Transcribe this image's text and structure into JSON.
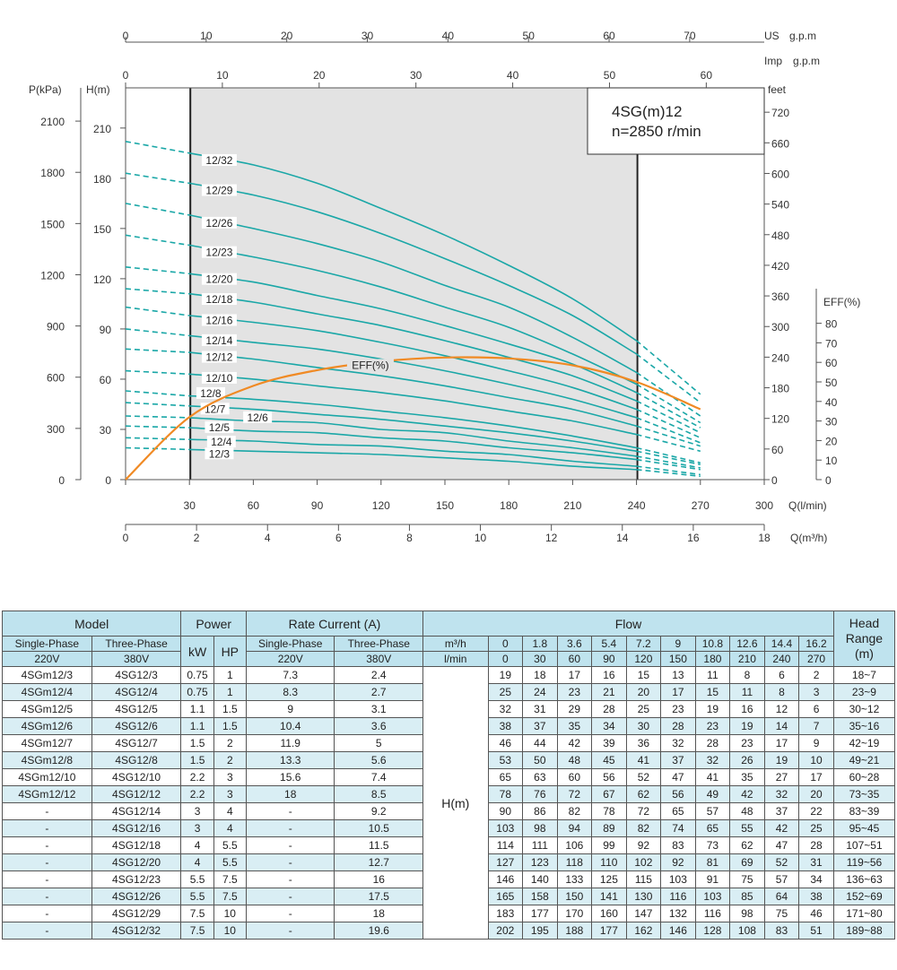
{
  "chart_data": {
    "type": "line",
    "model_box": [
      "4SG(m)12",
      "n=2850 r/min"
    ],
    "x": [
      0,
      30,
      60,
      90,
      120,
      150,
      180,
      210,
      240,
      270
    ],
    "xlabel": "Q(l/min)",
    "x_ticks": [
      "0",
      "30",
      "60",
      "90",
      "120",
      "150",
      "180",
      "210",
      "240",
      "270",
      "300"
    ],
    "xlim": [
      0,
      300
    ],
    "ylabel": "H(m)",
    "y_ticks": [
      "0",
      "30",
      "60",
      "90",
      "120",
      "150",
      "180",
      "210"
    ],
    "ylim": [
      0,
      234
    ],
    "recommended_range": [
      30,
      240
    ],
    "axes": {
      "us_gpm": {
        "label": "US",
        "unit": "g.p.m",
        "ticks": [
          "0",
          "10",
          "20",
          "30",
          "40",
          "50",
          "60",
          "70"
        ],
        "factor": 3.78541
      },
      "imp_gpm": {
        "label": "Imp",
        "unit": "g.p.m",
        "ticks": [
          "0",
          "10",
          "20",
          "30",
          "40",
          "50",
          "60"
        ],
        "factor": 4.54609
      },
      "m3h": {
        "label": "Q(m³/h)",
        "ticks": [
          "0",
          "2",
          "4",
          "6",
          "8",
          "10",
          "12",
          "14",
          "16",
          "18"
        ],
        "factor": 16.6667
      },
      "kpa": {
        "label": "P(kPa)",
        "ticks": [
          "0",
          "300",
          "600",
          "900",
          "1200",
          "1500",
          "1800",
          "2100"
        ],
        "factor": 0.10197
      },
      "feet": {
        "label": "feet",
        "ticks": [
          "0",
          "60",
          "120",
          "180",
          "240",
          "300",
          "360",
          "420",
          "480",
          "540",
          "600",
          "660",
          "720"
        ],
        "factor": 0.3048
      }
    },
    "series": [
      {
        "name": "12/3",
        "values": [
          19,
          18,
          17,
          16,
          15,
          13,
          11,
          8,
          6,
          2
        ]
      },
      {
        "name": "12/4",
        "values": [
          25,
          24,
          23,
          21,
          20,
          17,
          15,
          11,
          8,
          3
        ]
      },
      {
        "name": "12/5",
        "values": [
          32,
          31,
          29,
          28,
          25,
          23,
          19,
          16,
          12,
          6
        ]
      },
      {
        "name": "12/6",
        "values": [
          38,
          37,
          35,
          34,
          30,
          28,
          23,
          19,
          14,
          7
        ]
      },
      {
        "name": "12/7",
        "values": [
          46,
          44,
          42,
          39,
          36,
          32,
          28,
          23,
          17,
          9
        ]
      },
      {
        "name": "12/8",
        "values": [
          53,
          50,
          48,
          45,
          41,
          37,
          32,
          26,
          19,
          10
        ]
      },
      {
        "name": "12/10",
        "values": [
          65,
          63,
          60,
          56,
          52,
          47,
          41,
          35,
          27,
          17
        ]
      },
      {
        "name": "12/12",
        "values": [
          78,
          76,
          72,
          67,
          62,
          56,
          49,
          42,
          32,
          20
        ]
      },
      {
        "name": "12/14",
        "values": [
          90,
          86,
          82,
          78,
          72,
          65,
          57,
          48,
          37,
          22
        ]
      },
      {
        "name": "12/16",
        "values": [
          103,
          98,
          94,
          89,
          82,
          74,
          65,
          55,
          42,
          25
        ]
      },
      {
        "name": "12/18",
        "values": [
          114,
          111,
          106,
          99,
          92,
          83,
          73,
          62,
          47,
          28
        ]
      },
      {
        "name": "12/20",
        "values": [
          127,
          123,
          118,
          110,
          102,
          92,
          81,
          69,
          52,
          31
        ]
      },
      {
        "name": "12/23",
        "values": [
          146,
          140,
          133,
          125,
          115,
          103,
          91,
          75,
          57,
          34
        ]
      },
      {
        "name": "12/26",
        "values": [
          165,
          158,
          150,
          141,
          130,
          116,
          103,
          85,
          64,
          38
        ]
      },
      {
        "name": "12/29",
        "values": [
          183,
          177,
          170,
          160,
          147,
          132,
          116,
          98,
          75,
          46
        ]
      },
      {
        "name": "12/32",
        "values": [
          202,
          195,
          188,
          177,
          162,
          146,
          128,
          108,
          83,
          51
        ]
      }
    ],
    "efficiency": {
      "label": "EFF(%)",
      "ticks": [
        "0",
        "10",
        "20",
        "30",
        "40",
        "50",
        "60",
        "70",
        "80"
      ],
      "x": [
        0,
        30,
        60,
        90,
        120,
        150,
        180,
        210,
        240,
        270
      ],
      "values": [
        0,
        32,
        48,
        56,
        60.5,
        62.5,
        62,
        58.5,
        50,
        36
      ]
    }
  },
  "table": {
    "h_model": "Model",
    "h_power": "Power",
    "h_current": "Rate Current (A)",
    "h_flow": "Flow",
    "h_head": "Head Range",
    "h_head_unit": "(m)",
    "h_single": "Single-Phase",
    "h_three": "Three-Phase",
    "h_220": "220V",
    "h_380": "380V",
    "h_kw": "kW",
    "h_hp": "HP",
    "h_cur_single": "Single-Phase",
    "h_cur_three": "Three-Phase",
    "h_cur_220": "220V",
    "h_cur_380": "380V",
    "h_m3h": "m³/h",
    "h_lmin": "l/min",
    "flow_m3h": [
      "0",
      "1.8",
      "3.6",
      "5.4",
      "7.2",
      "9",
      "10.8",
      "12.6",
      "14.4",
      "16.2"
    ],
    "flow_lmin": [
      "0",
      "30",
      "60",
      "90",
      "120",
      "150",
      "180",
      "210",
      "240",
      "270"
    ],
    "h_label": "H(m)",
    "rows": [
      {
        "single": "4SGm12/3",
        "three": "4SG12/3",
        "kw": "0.75",
        "hp": "1",
        "i1": "7.3",
        "i3": "2.4",
        "h": [
          "19",
          "18",
          "17",
          "16",
          "15",
          "13",
          "11",
          "8",
          "6",
          "2"
        ],
        "range": "18~7"
      },
      {
        "single": "4SGm12/4",
        "three": "4SG12/4",
        "kw": "0.75",
        "hp": "1",
        "i1": "8.3",
        "i3": "2.7",
        "h": [
          "25",
          "24",
          "23",
          "21",
          "20",
          "17",
          "15",
          "11",
          "8",
          "3"
        ],
        "range": "23~9"
      },
      {
        "single": "4SGm12/5",
        "three": "4SG12/5",
        "kw": "1.1",
        "hp": "1.5",
        "i1": "9",
        "i3": "3.1",
        "h": [
          "32",
          "31",
          "29",
          "28",
          "25",
          "23",
          "19",
          "16",
          "12",
          "6"
        ],
        "range": "30~12"
      },
      {
        "single": "4SGm12/6",
        "three": "4SG12/6",
        "kw": "1.1",
        "hp": "1.5",
        "i1": "10.4",
        "i3": "3.6",
        "h": [
          "38",
          "37",
          "35",
          "34",
          "30",
          "28",
          "23",
          "19",
          "14",
          "7"
        ],
        "range": "35~16"
      },
      {
        "single": "4SGm12/7",
        "three": "4SG12/7",
        "kw": "1.5",
        "hp": "2",
        "i1": "11.9",
        "i3": "5",
        "h": [
          "46",
          "44",
          "42",
          "39",
          "36",
          "32",
          "28",
          "23",
          "17",
          "9"
        ],
        "range": "42~19"
      },
      {
        "single": "4SGm12/8",
        "three": "4SG12/8",
        "kw": "1.5",
        "hp": "2",
        "i1": "13.3",
        "i3": "5.6",
        "h": [
          "53",
          "50",
          "48",
          "45",
          "41",
          "37",
          "32",
          "26",
          "19",
          "10"
        ],
        "range": "49~21"
      },
      {
        "single": "4SGm12/10",
        "three": "4SG12/10",
        "kw": "2.2",
        "hp": "3",
        "i1": "15.6",
        "i3": "7.4",
        "h": [
          "65",
          "63",
          "60",
          "56",
          "52",
          "47",
          "41",
          "35",
          "27",
          "17"
        ],
        "range": "60~28"
      },
      {
        "single": "4SGm12/12",
        "three": "4SG12/12",
        "kw": "2.2",
        "hp": "3",
        "i1": "18",
        "i3": "8.5",
        "h": [
          "78",
          "76",
          "72",
          "67",
          "62",
          "56",
          "49",
          "42",
          "32",
          "20"
        ],
        "range": "73~35"
      },
      {
        "single": "-",
        "three": "4SG12/14",
        "kw": "3",
        "hp": "4",
        "i1": "-",
        "i3": "9.2",
        "h": [
          "90",
          "86",
          "82",
          "78",
          "72",
          "65",
          "57",
          "48",
          "37",
          "22"
        ],
        "range": "83~39"
      },
      {
        "single": "-",
        "three": "4SG12/16",
        "kw": "3",
        "hp": "4",
        "i1": "-",
        "i3": "10.5",
        "h": [
          "103",
          "98",
          "94",
          "89",
          "82",
          "74",
          "65",
          "55",
          "42",
          "25"
        ],
        "range": "95~45"
      },
      {
        "single": "-",
        "three": "4SG12/18",
        "kw": "4",
        "hp": "5.5",
        "i1": "-",
        "i3": "11.5",
        "h": [
          "114",
          "111",
          "106",
          "99",
          "92",
          "83",
          "73",
          "62",
          "47",
          "28"
        ],
        "range": "107~51"
      },
      {
        "single": "-",
        "three": "4SG12/20",
        "kw": "4",
        "hp": "5.5",
        "i1": "-",
        "i3": "12.7",
        "h": [
          "127",
          "123",
          "118",
          "110",
          "102",
          "92",
          "81",
          "69",
          "52",
          "31"
        ],
        "range": "119~56"
      },
      {
        "single": "-",
        "three": "4SG12/23",
        "kw": "5.5",
        "hp": "7.5",
        "i1": "-",
        "i3": "16",
        "h": [
          "146",
          "140",
          "133",
          "125",
          "115",
          "103",
          "91",
          "75",
          "57",
          "34"
        ],
        "range": "136~63"
      },
      {
        "single": "-",
        "three": "4SG12/26",
        "kw": "5.5",
        "hp": "7.5",
        "i1": "-",
        "i3": "17.5",
        "h": [
          "165",
          "158",
          "150",
          "141",
          "130",
          "116",
          "103",
          "85",
          "64",
          "38"
        ],
        "range": "152~69"
      },
      {
        "single": "-",
        "three": "4SG12/29",
        "kw": "7.5",
        "hp": "10",
        "i1": "-",
        "i3": "18",
        "h": [
          "183",
          "177",
          "170",
          "160",
          "147",
          "132",
          "116",
          "98",
          "75",
          "46"
        ],
        "range": "171~80"
      },
      {
        "single": "-",
        "three": "4SG12/32",
        "kw": "7.5",
        "hp": "10",
        "i1": "-",
        "i3": "19.6",
        "h": [
          "202",
          "195",
          "188",
          "177",
          "162",
          "146",
          "128",
          "108",
          "83",
          "51"
        ],
        "range": "189~88"
      }
    ]
  }
}
